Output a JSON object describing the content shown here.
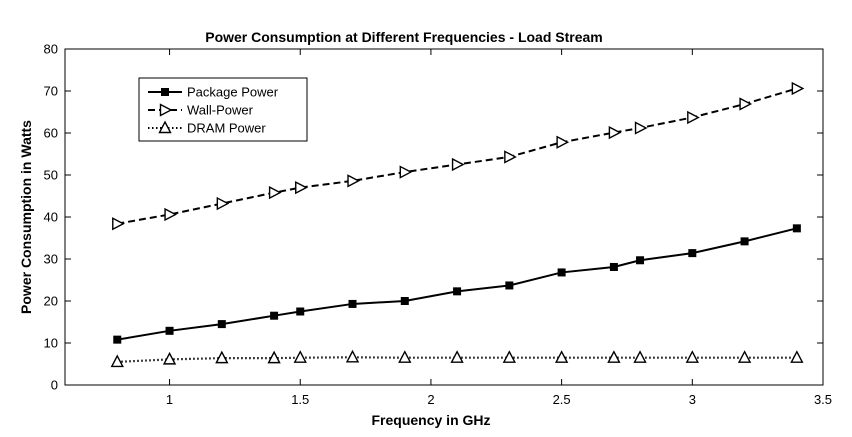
{
  "chart_data": {
    "type": "line",
    "title": "Power Consumption at Different Frequencies - Load Stream",
    "xlabel": "Frequency in GHz",
    "ylabel": "Power Consumption in Watts",
    "xlim": [
      0.6,
      3.5
    ],
    "ylim": [
      0,
      80
    ],
    "xticks": [
      1,
      1.5,
      2,
      2.5,
      3,
      3.5
    ],
    "xtick_labels": [
      "1",
      "1.5",
      "2",
      "2.5",
      "3",
      "3.5"
    ],
    "yticks": [
      0,
      10,
      20,
      30,
      40,
      50,
      60,
      70,
      80
    ],
    "ytick_labels": [
      "0",
      "10",
      "20",
      "30",
      "40",
      "50",
      "60",
      "70",
      "80"
    ],
    "grid": false,
    "legend_position": "top-left",
    "x": [
      0.8,
      1.0,
      1.2,
      1.4,
      1.5,
      1.7,
      1.9,
      2.1,
      2.3,
      2.5,
      2.7,
      2.8,
      3.0,
      3.2,
      3.4
    ],
    "series": [
      {
        "name": "Package Power",
        "line_style": "solid",
        "marker": "square",
        "color": "#000000",
        "values": [
          10.8,
          12.9,
          14.5,
          16.5,
          17.5,
          19.3,
          20.0,
          22.3,
          23.7,
          26.8,
          28.1,
          29.7,
          31.4,
          34.2,
          37.3
        ]
      },
      {
        "name": "Wall-Power",
        "line_style": "dashed",
        "marker": "triangle-right",
        "color": "#000000",
        "values": [
          38.4,
          40.6,
          43.2,
          45.8,
          47.0,
          48.6,
          50.7,
          52.5,
          54.3,
          57.8,
          60.1,
          61.2,
          63.7,
          66.9,
          70.6
        ]
      },
      {
        "name": "DRAM Power",
        "line_style": "dotted",
        "marker": "triangle-up",
        "color": "#000000",
        "values": [
          5.5,
          6.1,
          6.4,
          6.4,
          6.5,
          6.6,
          6.5,
          6.5,
          6.5,
          6.5,
          6.5,
          6.5,
          6.5,
          6.5,
          6.5
        ]
      }
    ]
  }
}
